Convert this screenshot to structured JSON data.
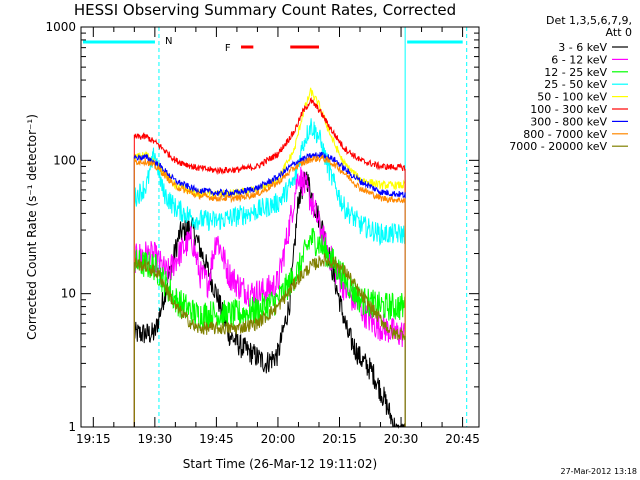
{
  "chart_data": {
    "type": "line",
    "title": "HESSI Observing Summary Count Rates, Corrected",
    "xlabel": "Start Time (26-Mar-12 19:11:02)",
    "ylabel": "Corrected Count Rate (s⁻¹ detector⁻¹)",
    "y_scale": "log",
    "ylim": [
      1,
      1000
    ],
    "xlim": [
      "19:12",
      "20:49"
    ],
    "x_ticks": [
      "19:15",
      "19:30",
      "19:45",
      "20:00",
      "20:15",
      "20:30",
      "20:45"
    ],
    "y_ticks": [
      "1",
      "10",
      "100",
      "1000"
    ],
    "legend_header": [
      "Det 1,3,5,6,7,9,",
      "Att 0"
    ],
    "legend_position": "right",
    "grid": false,
    "series": [
      {
        "name": "3 - 6 keV",
        "color": "#000000",
        "x": [
          "19:25",
          "19:28",
          "19:30",
          "19:33",
          "19:36",
          "19:39",
          "19:42",
          "19:45",
          "19:48",
          "19:51",
          "19:54",
          "19:57",
          "20:00",
          "20:03",
          "20:05",
          "20:07",
          "20:09",
          "20:11",
          "20:14",
          "20:17",
          "20:20",
          "20:23",
          "20:26",
          "20:29",
          "20:31"
        ],
        "values": [
          5,
          5,
          5,
          12,
          28,
          32,
          18,
          10,
          5,
          4,
          3.5,
          3,
          3.5,
          9,
          52,
          75,
          45,
          30,
          12,
          5,
          3.3,
          2.6,
          1.6,
          0.9,
          0.9
        ]
      },
      {
        "name": "6 - 12 keV",
        "color": "#ff00ff",
        "x": [
          "19:25",
          "19:27",
          "19:30",
          "19:33",
          "19:36",
          "19:39",
          "19:41",
          "19:43",
          "19:45",
          "19:48",
          "19:51",
          "19:54",
          "19:57",
          "20:00",
          "20:03",
          "20:05",
          "20:07",
          "20:09",
          "20:11",
          "20:14",
          "20:17",
          "20:20",
          "20:23",
          "20:26",
          "20:29",
          "20:31"
        ],
        "values": [
          18,
          20,
          19,
          14,
          20,
          26,
          14,
          12,
          27,
          14,
          11,
          10,
          10.5,
          12,
          35,
          80,
          60,
          42,
          26,
          15,
          10,
          8,
          6,
          5.5,
          5,
          5
        ]
      },
      {
        "name": "12 - 25 keV",
        "color": "#00ff00",
        "x": [
          "19:25",
          "19:30",
          "19:35",
          "19:40",
          "19:45",
          "19:50",
          "19:55",
          "20:00",
          "20:05",
          "20:08",
          "20:10",
          "20:13",
          "20:17",
          "20:20",
          "20:25",
          "20:31"
        ],
        "values": [
          17,
          16,
          9,
          7,
          7,
          7,
          7.5,
          9,
          15,
          26,
          24,
          18,
          12,
          9,
          8,
          8
        ]
      },
      {
        "name": "25 - 50 keV",
        "color": "#00ffff",
        "x": [
          "19:25",
          "19:28",
          "19:30",
          "19:32",
          "19:35",
          "19:40",
          "19:45",
          "19:50",
          "19:55",
          "20:00",
          "20:04",
          "20:06",
          "20:08",
          "20:10",
          "20:13",
          "20:16",
          "20:20",
          "20:25",
          "20:31"
        ],
        "values": [
          52,
          65,
          115,
          58,
          44,
          36,
          35,
          38,
          42,
          48,
          70,
          130,
          185,
          150,
          75,
          45,
          33,
          28,
          28
        ]
      },
      {
        "name": "50 - 100 keV",
        "color": "#ffff00",
        "x": [
          "19:25",
          "19:28",
          "19:31",
          "19:35",
          "19:40",
          "19:45",
          "19:50",
          "19:55",
          "20:00",
          "20:04",
          "20:06",
          "20:08",
          "20:10",
          "20:13",
          "20:16",
          "20:20",
          "20:25",
          "20:31"
        ],
        "values": [
          105,
          110,
          90,
          65,
          57,
          56,
          57,
          60,
          72,
          120,
          220,
          330,
          260,
          150,
          95,
          72,
          65,
          65
        ]
      },
      {
        "name": "100 - 300 keV",
        "color": "#ff0000",
        "x": [
          "19:25",
          "19:28",
          "19:31",
          "19:35",
          "19:40",
          "19:45",
          "19:50",
          "19:55",
          "20:00",
          "20:04",
          "20:06",
          "20:08",
          "20:10",
          "20:13",
          "20:16",
          "20:20",
          "20:25",
          "20:31"
        ],
        "values": [
          150,
          150,
          130,
          100,
          88,
          84,
          85,
          90,
          112,
          165,
          230,
          280,
          240,
          170,
          125,
          100,
          90,
          88
        ]
      },
      {
        "name": "300 - 800 keV",
        "color": "#0000ff",
        "x": [
          "19:25",
          "19:28",
          "19:31",
          "19:35",
          "19:40",
          "19:45",
          "19:50",
          "19:55",
          "20:00",
          "20:04",
          "20:08",
          "20:11",
          "20:14",
          "20:17",
          "20:20",
          "20:25",
          "20:31"
        ],
        "values": [
          105,
          105,
          92,
          70,
          60,
          57,
          57,
          62,
          75,
          95,
          108,
          110,
          100,
          82,
          70,
          58,
          55
        ]
      },
      {
        "name": "800 - 7000 keV",
        "color": "#ff8800",
        "x": [
          "19:25",
          "19:28",
          "19:31",
          "19:35",
          "19:40",
          "19:45",
          "19:50",
          "19:55",
          "20:00",
          "20:04",
          "20:08",
          "20:11",
          "20:14",
          "20:17",
          "20:20",
          "20:25",
          "20:31"
        ],
        "values": [
          98,
          98,
          86,
          64,
          55,
          52,
          52,
          56,
          68,
          88,
          102,
          104,
          92,
          76,
          62,
          52,
          50
        ]
      },
      {
        "name": "7000 - 20000 keV",
        "color": "#808000",
        "x": [
          "19:25",
          "19:28",
          "19:31",
          "19:35",
          "19:40",
          "19:45",
          "19:50",
          "19:55",
          "20:00",
          "20:05",
          "20:08",
          "20:11",
          "20:14",
          "20:17",
          "20:20",
          "20:24",
          "20:28",
          "20:31"
        ],
        "values": [
          17,
          16,
          14,
          8,
          5.5,
          5.5,
          5.5,
          6,
          8,
          13,
          16,
          18,
          17,
          14,
          10,
          7,
          5,
          5
        ]
      }
    ],
    "annotations": [
      {
        "text": "N",
        "x": "19:31",
        "color": "#00ffff"
      },
      {
        "text": "F",
        "x": "19:49",
        "color": "#ff0000"
      }
    ],
    "flare_bars": [
      {
        "start": "19:51",
        "end": "19:54",
        "color": "#ff0000"
      },
      {
        "start": "20:03",
        "end": "20:10",
        "color": "#ff0000"
      }
    ],
    "night_intervals": [
      {
        "start": "19:12",
        "end": "19:31"
      },
      {
        "start": "20:31",
        "end": "20:46"
      }
    ],
    "saa_lines": [
      "19:31",
      "20:46"
    ],
    "timestamp": "27-Mar-2012 13:18"
  }
}
